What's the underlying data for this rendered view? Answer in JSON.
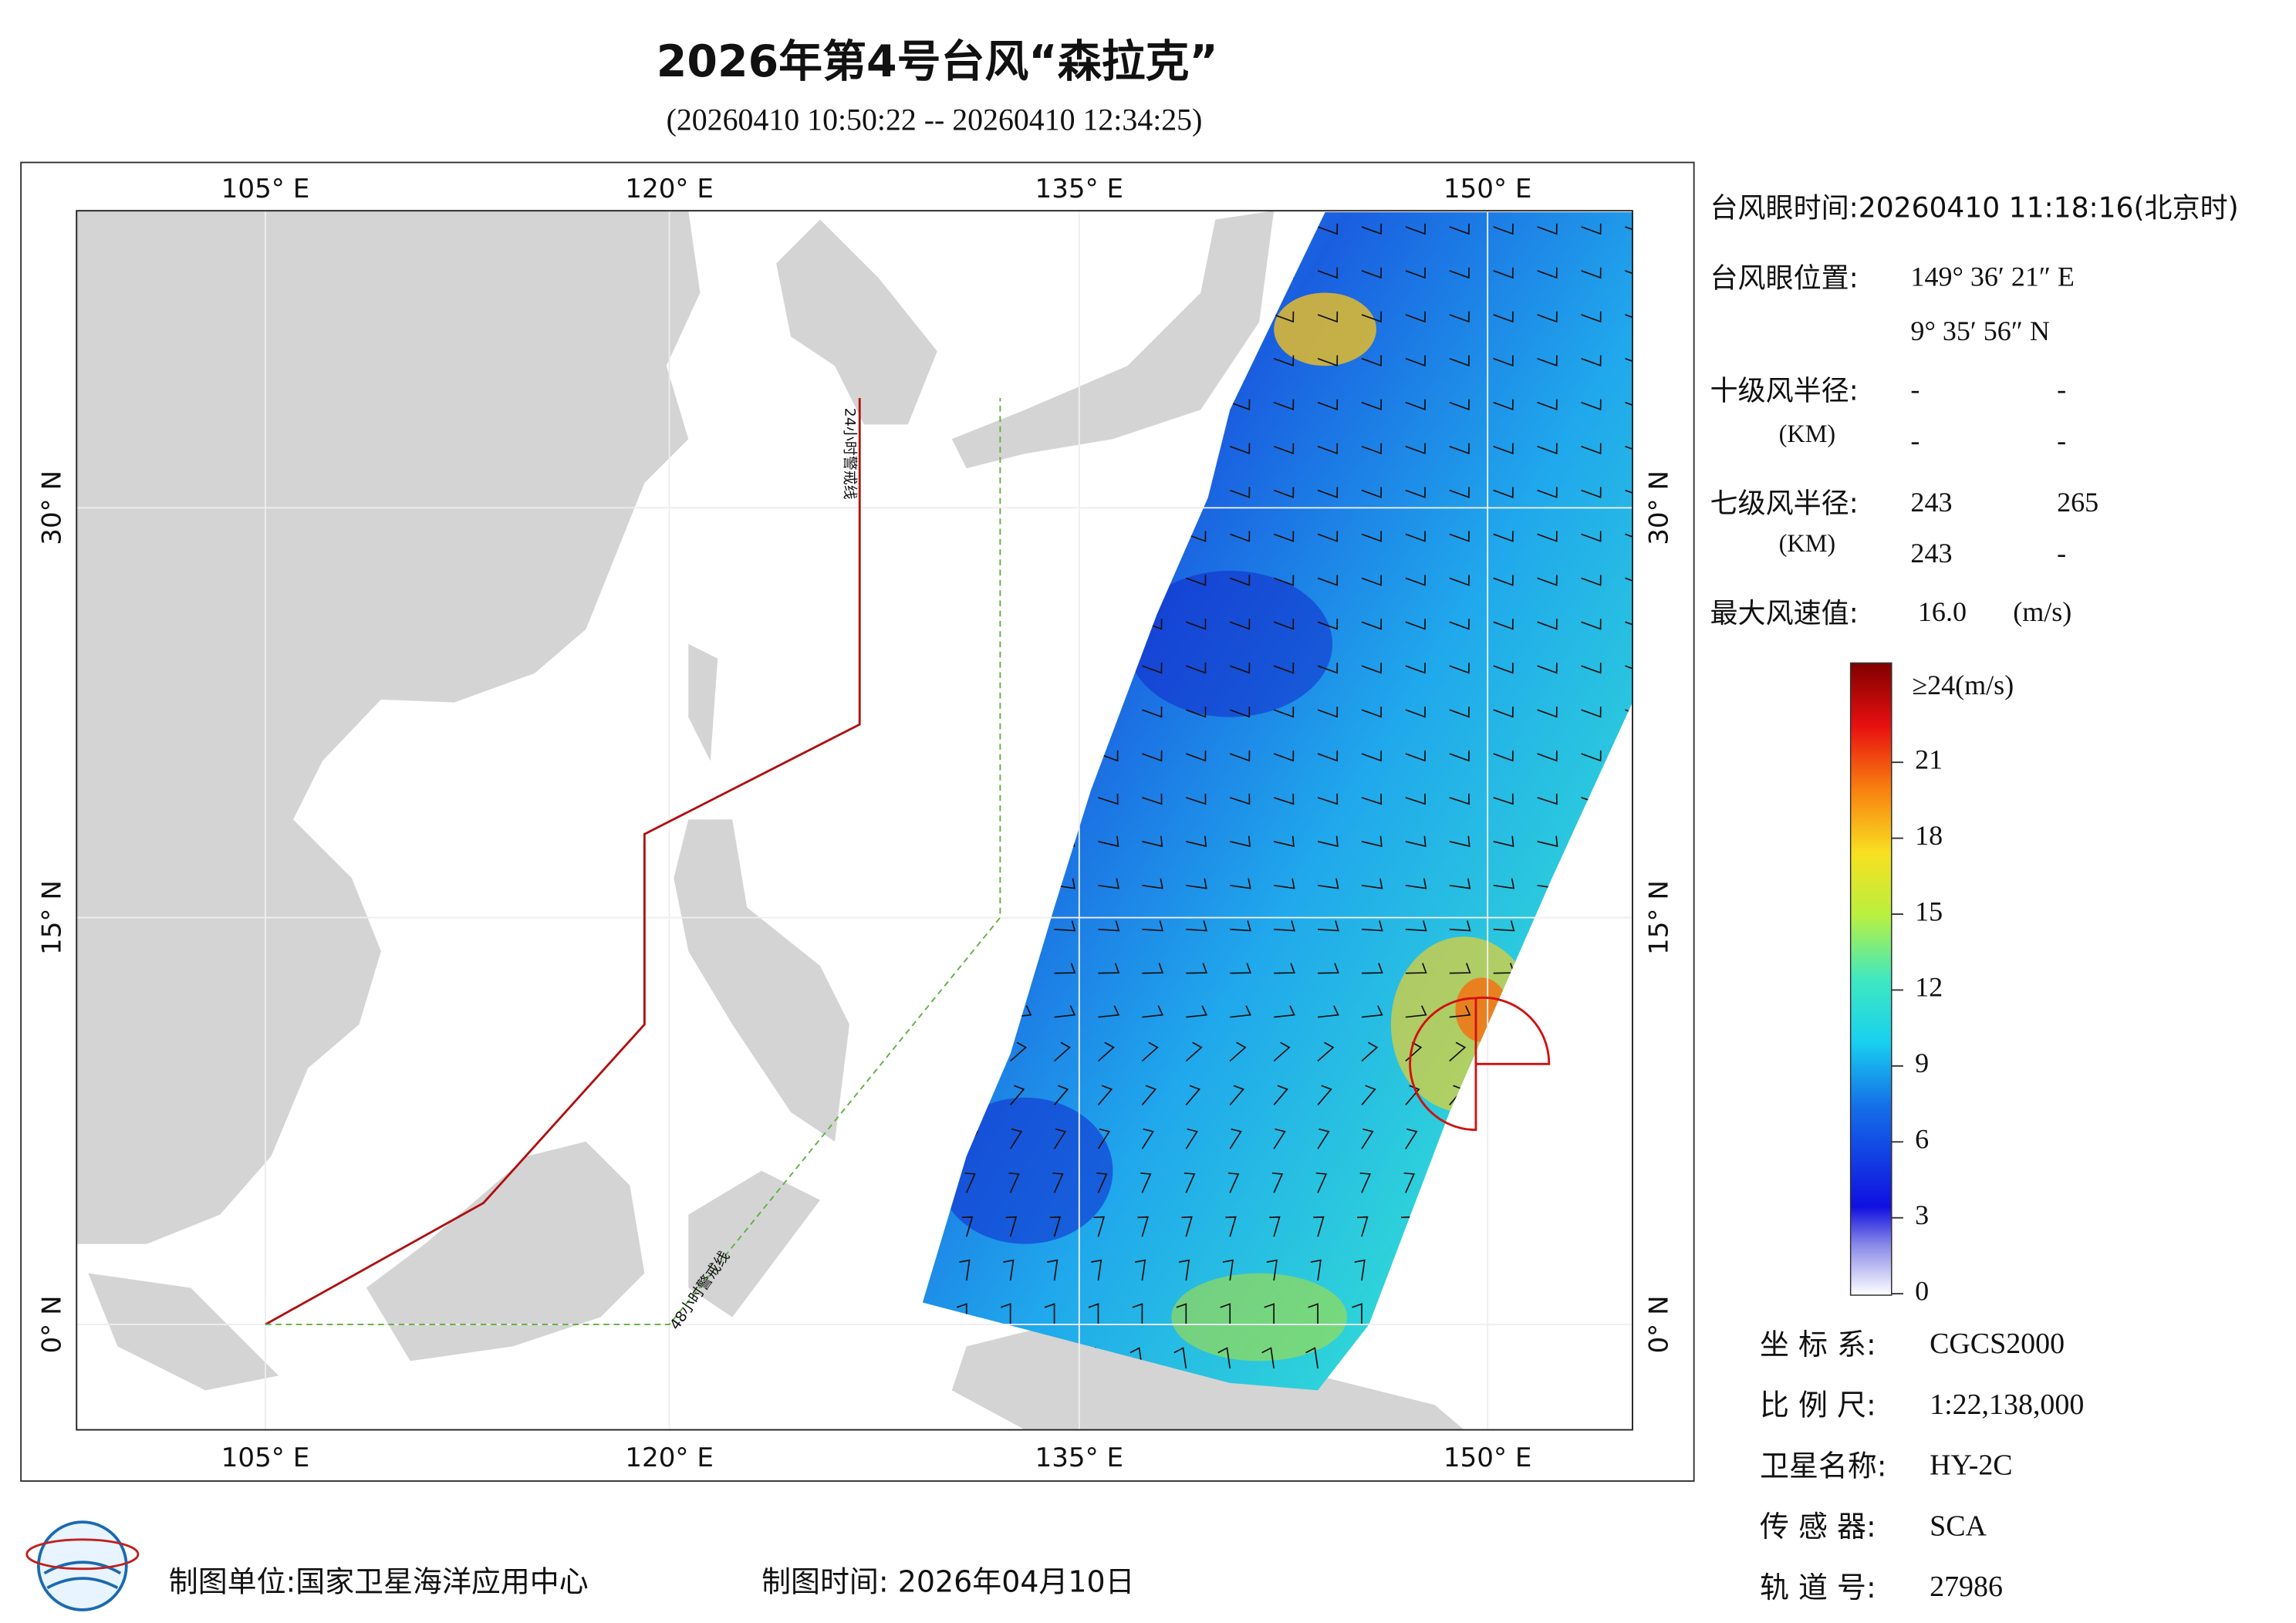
{
  "title": "2026年第4号台风“森拉克”",
  "subtitle": "(20260410 10:50:22 -- 20260410 12:34:25)",
  "map": {
    "lon_labels": [
      "105° E",
      "120° E",
      "135° E",
      "150° E"
    ],
    "lat_labels": [
      "30° N",
      "15° N",
      "0° N"
    ],
    "warning_lines": [
      "24小时警戒线",
      "48小时警戒线"
    ]
  },
  "info": {
    "eye_time": "台风眼时间:20260410 11:18:16(北京时)",
    "eye_position": {
      "label": "台风眼位置:",
      "lon": "149° 36′ 21″ E",
      "lat": "9° 35′ 56″ N"
    },
    "r10": {
      "label": "十级风半径:",
      "unit": "(KM)",
      "values": [
        "-",
        "-",
        "-",
        "-"
      ]
    },
    "r7": {
      "label": "七级风半径:",
      "unit": "(KM)",
      "values": [
        "243",
        "265",
        "243",
        "-"
      ]
    },
    "max_wind": {
      "label": "最大风速值:",
      "value": "16.0",
      "unit": "(m/s)"
    }
  },
  "colorbar": {
    "top_label": "≥24(m/s)",
    "ticks": [
      21,
      18,
      15,
      12,
      9,
      6,
      3,
      0
    ]
  },
  "meta": [
    {
      "label": "坐 标 系:",
      "value": "CGCS2000"
    },
    {
      "label": "比 例 尺:",
      "value": "1:22,138,000"
    },
    {
      "label": "卫星名称:",
      "value": "HY-2C"
    },
    {
      "label": "传 感 器:",
      "value": "SCA"
    },
    {
      "label": "轨 道 号:",
      "value": "27986"
    }
  ],
  "footer": {
    "unit": "制图单位:国家卫星海洋应用中心",
    "time": "制图时间: 2026年04月10日"
  }
}
